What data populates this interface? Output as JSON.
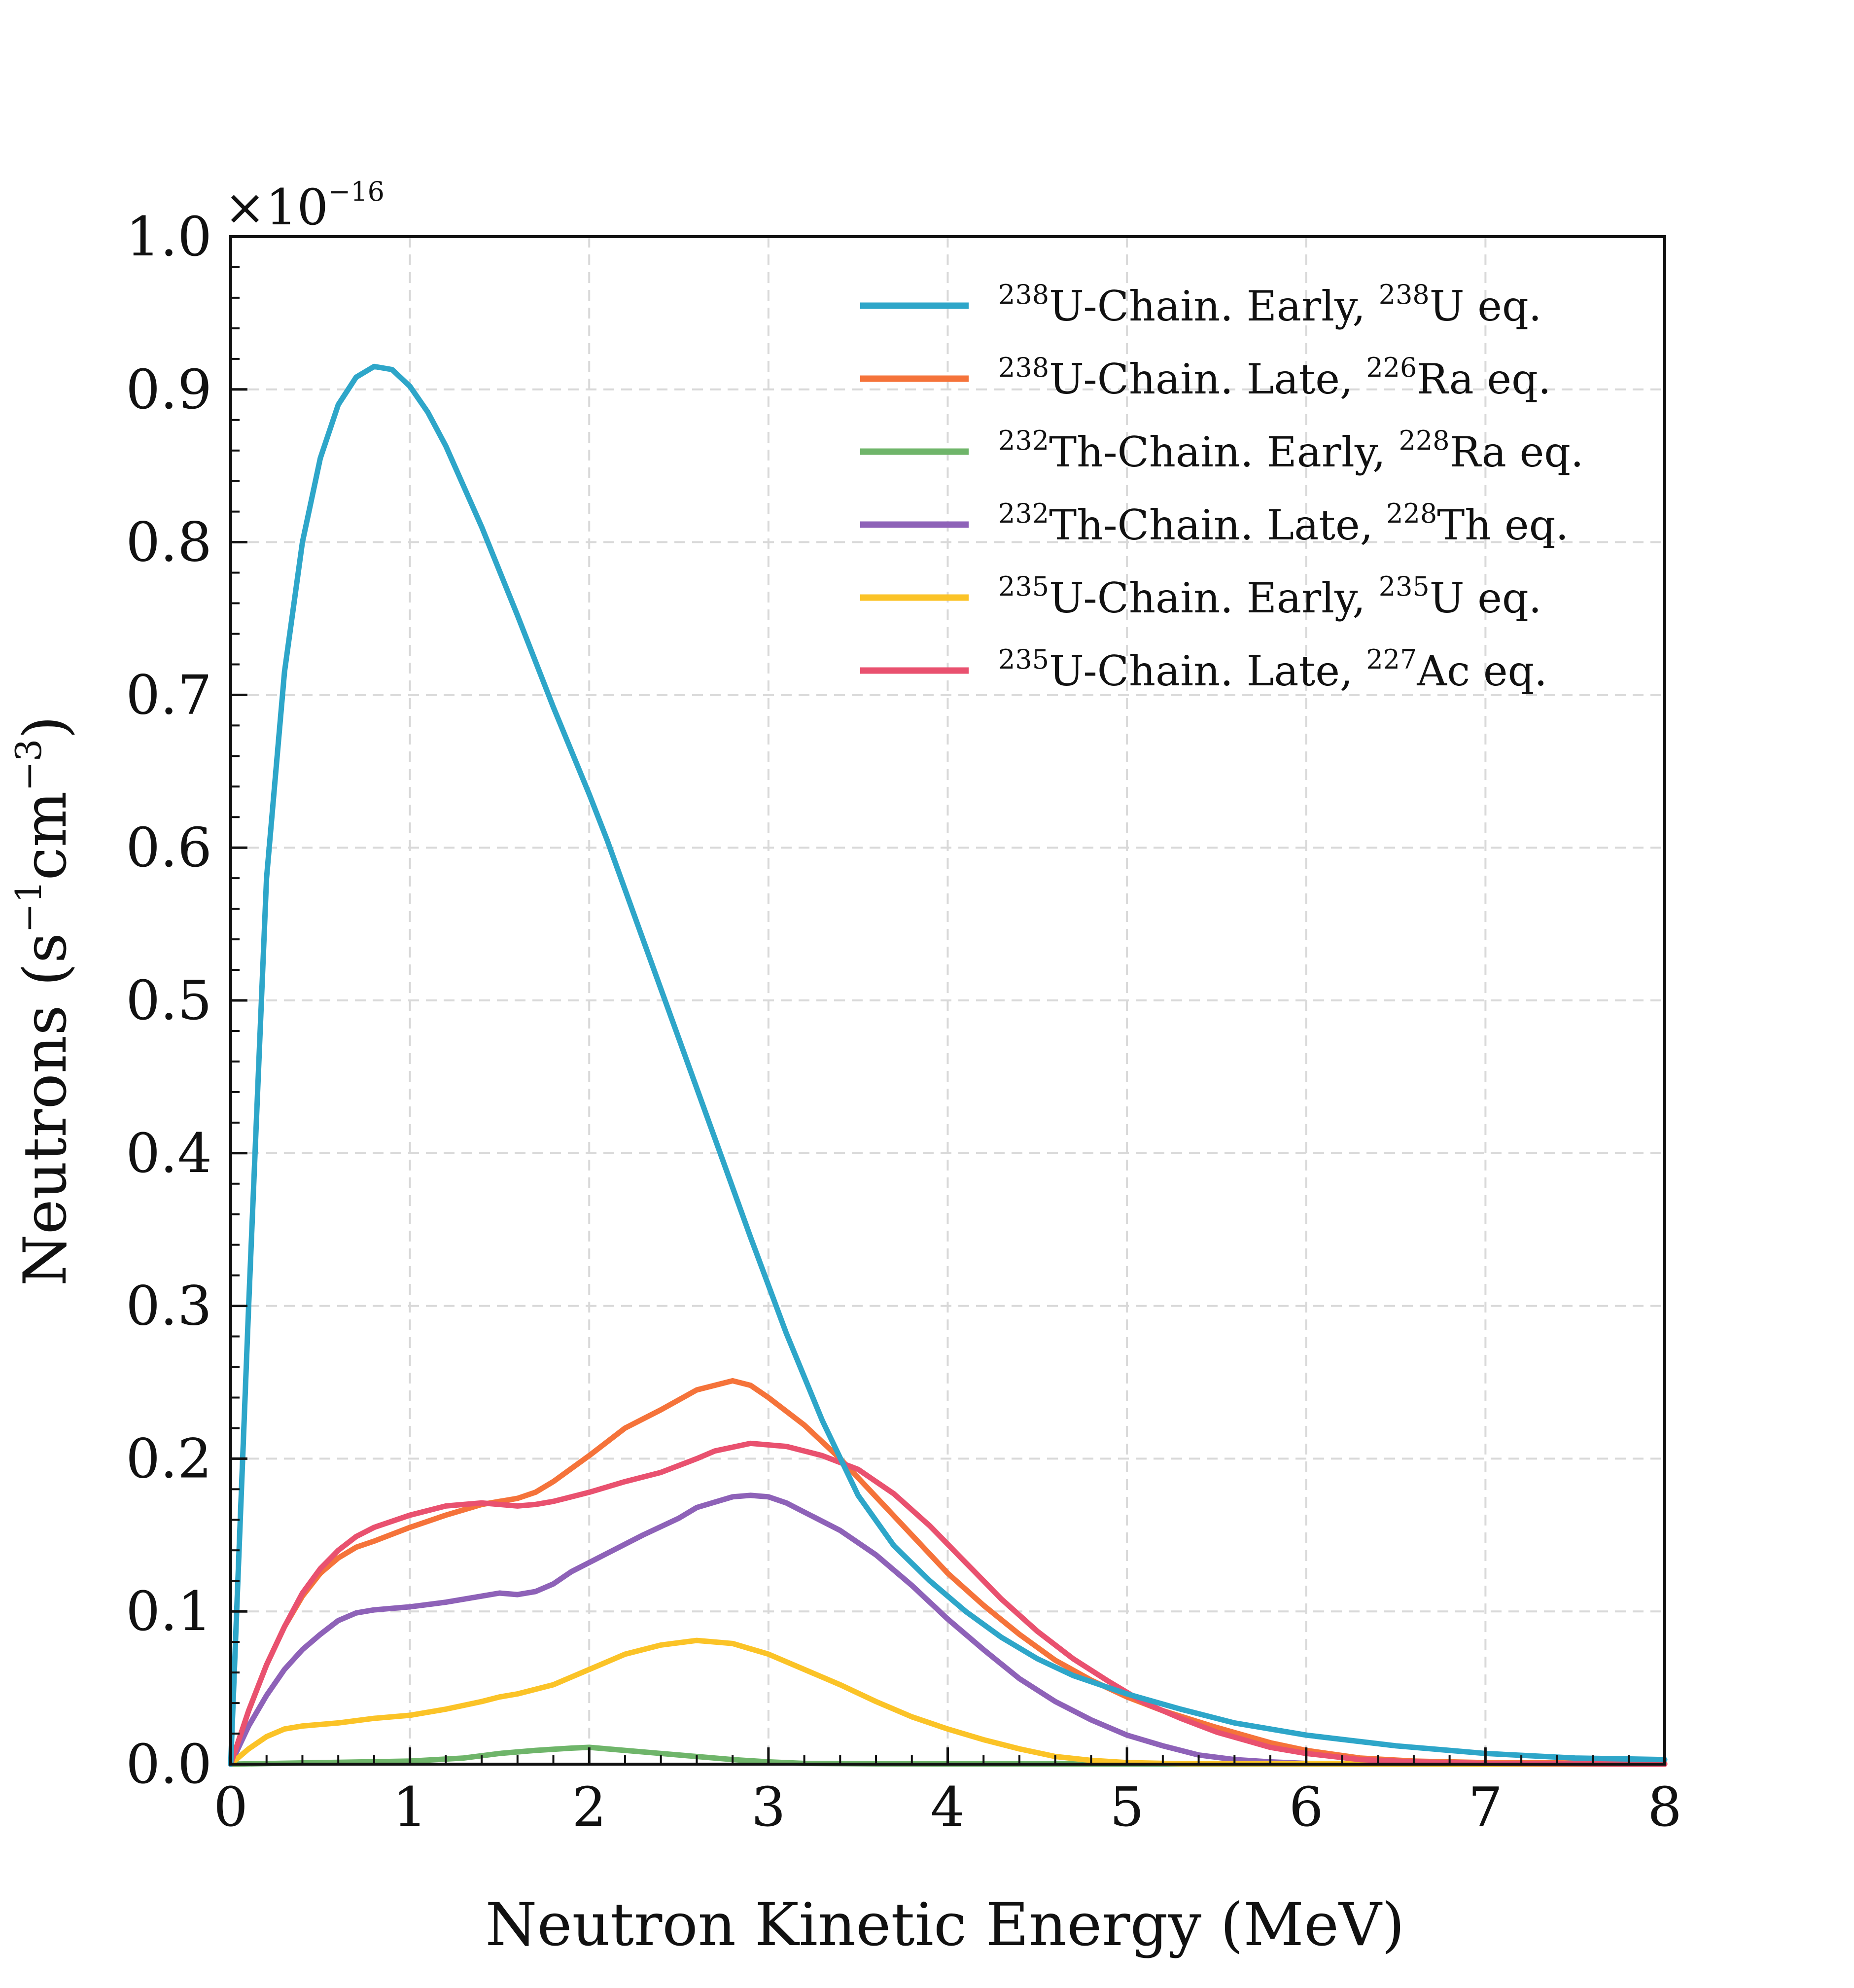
{
  "chart_data": {
    "type": "line",
    "title": "",
    "xlabel": "Neutron Kinetic Energy (MeV)",
    "ylabel": {
      "main": "Neutrons (s",
      "exp1": "−1",
      "mid": "cm",
      "exp2": "−3",
      "end": ")"
    },
    "y_scale_label": {
      "base": "×10",
      "exponent": "−16"
    },
    "xlim": [
      0,
      8
    ],
    "ylim": [
      0,
      1.0
    ],
    "x_ticks": [
      "0",
      "1",
      "2",
      "3",
      "4",
      "5",
      "6",
      "7",
      "8"
    ],
    "y_ticks": [
      "0.0",
      "0.1",
      "0.2",
      "0.3",
      "0.4",
      "0.5",
      "0.6",
      "0.7",
      "0.8",
      "0.9",
      "1.0"
    ],
    "grid": true,
    "legend_position": "top-right",
    "series": [
      {
        "id": "u238-early",
        "color": "#2ea6c9",
        "label": {
          "sup1": "238",
          "text1": "U-Chain. Early, ",
          "sup2": "238",
          "text2": "U eq."
        },
        "points": [
          [
            0,
            0
          ],
          [
            0.1,
            0.3
          ],
          [
            0.2,
            0.58
          ],
          [
            0.3,
            0.715
          ],
          [
            0.4,
            0.8
          ],
          [
            0.5,
            0.855
          ],
          [
            0.6,
            0.89
          ],
          [
            0.7,
            0.908
          ],
          [
            0.8,
            0.915
          ],
          [
            0.9,
            0.913
          ],
          [
            1.0,
            0.902
          ],
          [
            1.1,
            0.885
          ],
          [
            1.2,
            0.863
          ],
          [
            1.4,
            0.81
          ],
          [
            1.6,
            0.752
          ],
          [
            1.8,
            0.692
          ],
          [
            2.0,
            0.635
          ],
          [
            2.1,
            0.605
          ],
          [
            2.3,
            0.54
          ],
          [
            2.5,
            0.475
          ],
          [
            2.7,
            0.41
          ],
          [
            2.9,
            0.345
          ],
          [
            3.1,
            0.282
          ],
          [
            3.3,
            0.225
          ],
          [
            3.5,
            0.176
          ],
          [
            3.7,
            0.143
          ],
          [
            3.9,
            0.12
          ],
          [
            4.1,
            0.1
          ],
          [
            4.3,
            0.083
          ],
          [
            4.5,
            0.069
          ],
          [
            4.7,
            0.058
          ],
          [
            5.0,
            0.046
          ],
          [
            5.3,
            0.036
          ],
          [
            5.6,
            0.027
          ],
          [
            6.0,
            0.019
          ],
          [
            6.5,
            0.012
          ],
          [
            7.0,
            0.007
          ],
          [
            7.5,
            0.004
          ],
          [
            8.0,
            0.003
          ]
        ]
      },
      {
        "id": "u238-late",
        "color": "#f5733a",
        "label": {
          "sup1": "238",
          "text1": "U-Chain. Late, ",
          "sup2": "226",
          "text2": "Ra eq."
        },
        "points": [
          [
            0,
            0
          ],
          [
            0.1,
            0.035
          ],
          [
            0.2,
            0.065
          ],
          [
            0.3,
            0.09
          ],
          [
            0.4,
            0.11
          ],
          [
            0.5,
            0.125
          ],
          [
            0.6,
            0.135
          ],
          [
            0.7,
            0.142
          ],
          [
            0.8,
            0.146
          ],
          [
            1.0,
            0.155
          ],
          [
            1.2,
            0.163
          ],
          [
            1.4,
            0.17
          ],
          [
            1.5,
            0.172
          ],
          [
            1.6,
            0.174
          ],
          [
            1.7,
            0.178
          ],
          [
            1.8,
            0.185
          ],
          [
            2.0,
            0.202
          ],
          [
            2.2,
            0.22
          ],
          [
            2.4,
            0.232
          ],
          [
            2.6,
            0.245
          ],
          [
            2.8,
            0.251
          ],
          [
            2.9,
            0.248
          ],
          [
            3.0,
            0.24
          ],
          [
            3.2,
            0.222
          ],
          [
            3.4,
            0.2
          ],
          [
            3.6,
            0.175
          ],
          [
            3.8,
            0.15
          ],
          [
            4.0,
            0.125
          ],
          [
            4.2,
            0.104
          ],
          [
            4.4,
            0.085
          ],
          [
            4.6,
            0.068
          ],
          [
            4.8,
            0.055
          ],
          [
            5.0,
            0.044
          ],
          [
            5.2,
            0.035
          ],
          [
            5.5,
            0.024
          ],
          [
            5.8,
            0.014
          ],
          [
            6.0,
            0.009
          ],
          [
            6.3,
            0.004
          ],
          [
            6.6,
            0.002
          ],
          [
            7.0,
            0.001
          ],
          [
            8.0,
            0.0005
          ]
        ]
      },
      {
        "id": "th232-early",
        "color": "#6fb56a",
        "label": {
          "sup1": "232",
          "text1": "Th-Chain. Early, ",
          "sup2": "228",
          "text2": "Ra eq."
        },
        "points": [
          [
            0,
            0
          ],
          [
            0.5,
            0.001
          ],
          [
            1.0,
            0.002
          ],
          [
            1.3,
            0.004
          ],
          [
            1.5,
            0.007
          ],
          [
            1.7,
            0.009
          ],
          [
            1.9,
            0.0105
          ],
          [
            2.0,
            0.011
          ],
          [
            2.2,
            0.009
          ],
          [
            2.4,
            0.007
          ],
          [
            2.6,
            0.005
          ],
          [
            2.8,
            0.003
          ],
          [
            3.0,
            0.0015
          ],
          [
            3.2,
            0.0005
          ],
          [
            3.6,
            0.0002
          ],
          [
            8.0,
            0.0
          ]
        ]
      },
      {
        "id": "th232-late",
        "color": "#8e62b8",
        "label": {
          "sup1": "232",
          "text1": "Th-Chain. Late, ",
          "sup2": "228",
          "text2": "Th eq."
        },
        "points": [
          [
            0,
            0
          ],
          [
            0.1,
            0.025
          ],
          [
            0.2,
            0.045
          ],
          [
            0.3,
            0.062
          ],
          [
            0.4,
            0.075
          ],
          [
            0.5,
            0.085
          ],
          [
            0.6,
            0.094
          ],
          [
            0.7,
            0.099
          ],
          [
            0.8,
            0.101
          ],
          [
            1.0,
            0.103
          ],
          [
            1.2,
            0.106
          ],
          [
            1.4,
            0.11
          ],
          [
            1.5,
            0.112
          ],
          [
            1.6,
            0.111
          ],
          [
            1.7,
            0.113
          ],
          [
            1.8,
            0.118
          ],
          [
            1.9,
            0.126
          ],
          [
            2.1,
            0.138
          ],
          [
            2.3,
            0.15
          ],
          [
            2.5,
            0.161
          ],
          [
            2.6,
            0.168
          ],
          [
            2.8,
            0.175
          ],
          [
            2.9,
            0.176
          ],
          [
            3.0,
            0.175
          ],
          [
            3.1,
            0.171
          ],
          [
            3.4,
            0.153
          ],
          [
            3.6,
            0.137
          ],
          [
            3.8,
            0.117
          ],
          [
            4.0,
            0.095
          ],
          [
            4.2,
            0.075
          ],
          [
            4.4,
            0.056
          ],
          [
            4.6,
            0.041
          ],
          [
            4.8,
            0.029
          ],
          [
            5.0,
            0.019
          ],
          [
            5.2,
            0.012
          ],
          [
            5.4,
            0.006
          ],
          [
            5.6,
            0.003
          ],
          [
            5.8,
            0.0015
          ],
          [
            6.0,
            0.0005
          ],
          [
            8.0,
            0.0
          ]
        ]
      },
      {
        "id": "u235-early",
        "color": "#fbc327",
        "label": {
          "sup1": "235",
          "text1": "U-Chain. Early, ",
          "sup2": "235",
          "text2": "U eq."
        },
        "points": [
          [
            0,
            0
          ],
          [
            0.1,
            0.01
          ],
          [
            0.2,
            0.018
          ],
          [
            0.3,
            0.023
          ],
          [
            0.4,
            0.025
          ],
          [
            0.6,
            0.027
          ],
          [
            0.8,
            0.03
          ],
          [
            1.0,
            0.032
          ],
          [
            1.2,
            0.036
          ],
          [
            1.4,
            0.041
          ],
          [
            1.5,
            0.044
          ],
          [
            1.6,
            0.046
          ],
          [
            1.8,
            0.052
          ],
          [
            2.0,
            0.062
          ],
          [
            2.2,
            0.072
          ],
          [
            2.4,
            0.078
          ],
          [
            2.6,
            0.081
          ],
          [
            2.8,
            0.079
          ],
          [
            3.0,
            0.072
          ],
          [
            3.2,
            0.062
          ],
          [
            3.4,
            0.052
          ],
          [
            3.6,
            0.041
          ],
          [
            3.8,
            0.031
          ],
          [
            4.0,
            0.023
          ],
          [
            4.2,
            0.016
          ],
          [
            4.4,
            0.01
          ],
          [
            4.6,
            0.005
          ],
          [
            4.8,
            0.0025
          ],
          [
            5.0,
            0.001
          ],
          [
            5.3,
            0.0003
          ],
          [
            8.0,
            0.0
          ]
        ]
      },
      {
        "id": "u235-late",
        "color": "#e9516f",
        "label": {
          "sup1": "235",
          "text1": "U-Chain. Late, ",
          "sup2": "227",
          "text2": "Ac eq."
        },
        "points": [
          [
            0,
            0
          ],
          [
            0.1,
            0.035
          ],
          [
            0.2,
            0.065
          ],
          [
            0.3,
            0.09
          ],
          [
            0.4,
            0.112
          ],
          [
            0.5,
            0.128
          ],
          [
            0.6,
            0.14
          ],
          [
            0.7,
            0.149
          ],
          [
            0.8,
            0.155
          ],
          [
            1.0,
            0.163
          ],
          [
            1.2,
            0.169
          ],
          [
            1.4,
            0.171
          ],
          [
            1.6,
            0.169
          ],
          [
            1.7,
            0.17
          ],
          [
            1.8,
            0.172
          ],
          [
            2.0,
            0.178
          ],
          [
            2.2,
            0.185
          ],
          [
            2.4,
            0.191
          ],
          [
            2.6,
            0.2
          ],
          [
            2.7,
            0.205
          ],
          [
            2.9,
            0.21
          ],
          [
            3.1,
            0.208
          ],
          [
            3.3,
            0.202
          ],
          [
            3.5,
            0.193
          ],
          [
            3.7,
            0.177
          ],
          [
            3.9,
            0.156
          ],
          [
            4.1,
            0.132
          ],
          [
            4.3,
            0.108
          ],
          [
            4.5,
            0.087
          ],
          [
            4.7,
            0.069
          ],
          [
            4.9,
            0.054
          ],
          [
            5.1,
            0.04
          ],
          [
            5.3,
            0.03
          ],
          [
            5.5,
            0.021
          ],
          [
            5.8,
            0.011
          ],
          [
            6.0,
            0.007
          ],
          [
            6.3,
            0.003
          ],
          [
            6.6,
            0.0015
          ],
          [
            7.0,
            0.0005
          ],
          [
            8.0,
            0.0
          ]
        ]
      }
    ]
  }
}
